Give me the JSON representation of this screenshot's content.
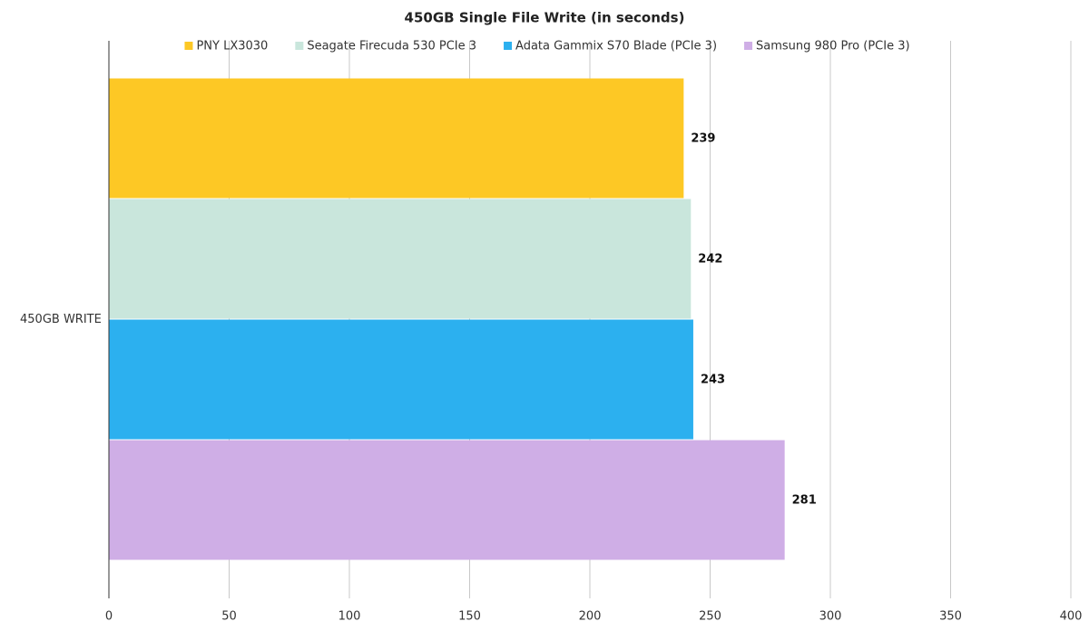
{
  "chart_data": {
    "type": "bar",
    "orientation": "horizontal",
    "title": "450GB Single File Write (in seconds)",
    "categories": [
      "450GB WRITE"
    ],
    "series": [
      {
        "name": "PNY LX3030",
        "color": "#fdc825",
        "values": [
          239
        ]
      },
      {
        "name": "Seagate Firecuda 530 PCIe 3",
        "color": "#c9e6dc",
        "values": [
          242
        ]
      },
      {
        "name": "Adata Gammix S70 Blade (PCIe 3)",
        "color": "#2cb0ef",
        "values": [
          243
        ]
      },
      {
        "name": "Samsung 980 Pro (PCIe 3)",
        "color": "#cfaee6",
        "values": [
          281
        ]
      }
    ],
    "xlim": [
      0,
      400
    ],
    "xticks": [
      0,
      50,
      100,
      150,
      200,
      250,
      300,
      350,
      400
    ],
    "grid": true,
    "legend": "top"
  }
}
